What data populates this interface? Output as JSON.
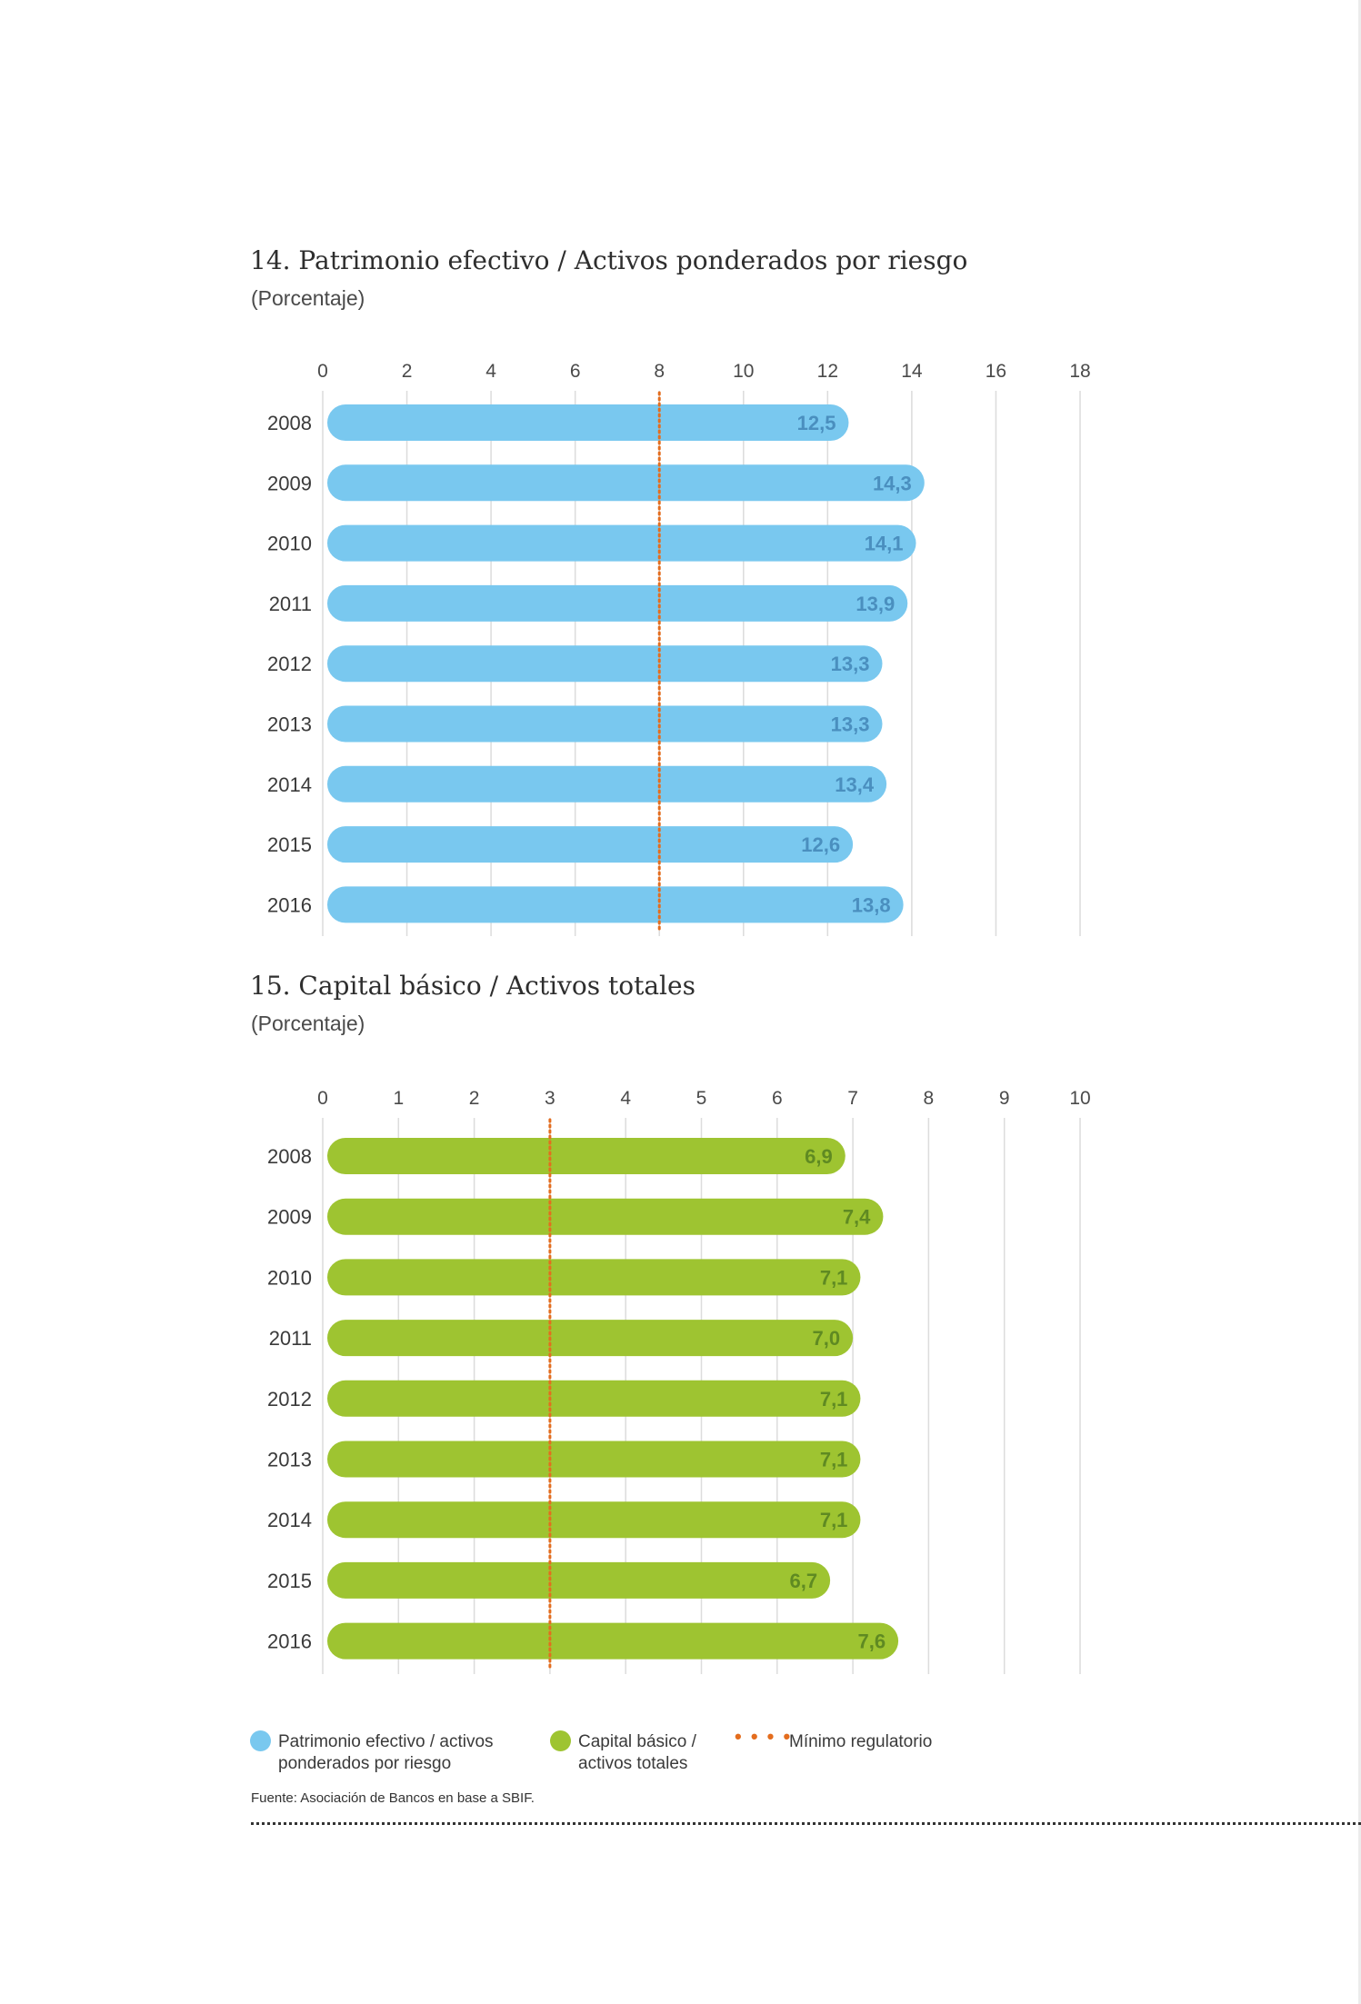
{
  "charts": [
    {
      "title": "14. Patrimonio efectivo / Activos ponderados por riesgo",
      "subtitle": "(Porcentaje)"
    },
    {
      "title": "15. Capital básico / Activos totales",
      "subtitle": "(Porcentaje)"
    }
  ],
  "chart_data": [
    {
      "type": "bar",
      "orientation": "horizontal",
      "title": "14. Patrimonio efectivo / Activos ponderados por riesgo",
      "subtitle": "(Porcentaje)",
      "categories": [
        "2008",
        "2009",
        "2010",
        "2011",
        "2012",
        "2013",
        "2014",
        "2015",
        "2016"
      ],
      "values": [
        12.5,
        14.3,
        14.1,
        13.9,
        13.3,
        13.3,
        13.4,
        12.6,
        13.8
      ],
      "value_labels": [
        "12,5",
        "14,3",
        "14,1",
        "13,9",
        "13,3",
        "13,3",
        "13,4",
        "12,6",
        "13,8"
      ],
      "series_name": "Patrimonio efectivo / activos ponderados por riesgo",
      "xlim": [
        0,
        18
      ],
      "ticks": [
        0,
        2,
        4,
        6,
        8,
        10,
        12,
        14,
        16,
        18
      ],
      "reference_line": {
        "value": 8,
        "name": "Mínimo regulatorio"
      },
      "axis_position": "top",
      "grid": true,
      "bar_color": "#79c8ef",
      "label_color": "#4a8fbf",
      "reference_color": "#e46d1e"
    },
    {
      "type": "bar",
      "orientation": "horizontal",
      "title": "15. Capital básico / Activos totales",
      "subtitle": "(Porcentaje)",
      "categories": [
        "2008",
        "2009",
        "2010",
        "2011",
        "2012",
        "2013",
        "2014",
        "2015",
        "2016"
      ],
      "values": [
        6.9,
        7.4,
        7.1,
        7.0,
        7.1,
        7.1,
        7.1,
        6.7,
        7.6
      ],
      "value_labels": [
        "6,9",
        "7,4",
        "7,1",
        "7,0",
        "7,1",
        "7,1",
        "7,1",
        "6,7",
        "7,6"
      ],
      "series_name": "Capital básico / activos totales",
      "xlim": [
        0,
        10
      ],
      "ticks": [
        0,
        1,
        2,
        3,
        4,
        5,
        6,
        7,
        8,
        9,
        10
      ],
      "reference_line": {
        "value": 3,
        "name": "Mínimo regulatorio"
      },
      "axis_position": "top",
      "grid": true,
      "bar_color": "#9ec431",
      "label_color": "#5f8a22",
      "reference_color": "#e46d1e"
    }
  ],
  "legend": {
    "items": [
      {
        "label": "Patrimonio efectivo / activos\nponderados por riesgo",
        "color": "#79c8ef",
        "marker": "circle"
      },
      {
        "label": "Capital básico /\nactivos totales",
        "color": "#9ec431",
        "marker": "circle"
      },
      {
        "label": "Mínimo regulatorio",
        "color": "#e46d1e",
        "marker": "dotted-line"
      }
    ]
  },
  "source": "Fuente: Asociación de Bancos en base a SBIF."
}
